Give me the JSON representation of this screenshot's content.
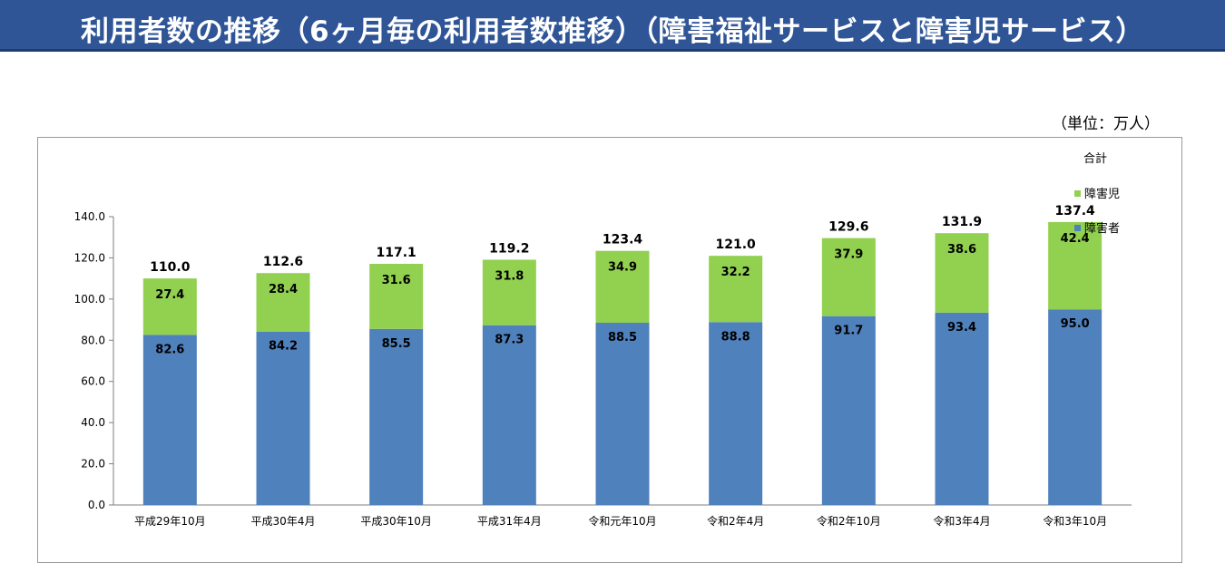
{
  "title": "利用者数の推移（6ヶ月毎の利用者数推移）（障害福祉サービスと障害児サービス）",
  "unit": "（単位：万人）",
  "colors": {
    "header": "#2f5597",
    "adult": "#4f81bd",
    "child": "#92d050"
  },
  "chart_data": {
    "type": "bar",
    "stacked": true,
    "categories": [
      "平成29年10月",
      "平成30年4月",
      "平成30年10月",
      "平成31年4月",
      "令和元年10月",
      "令和2年4月",
      "令和2年10月",
      "令和3年4月",
      "令和3年10月"
    ],
    "series": [
      {
        "name": "障害者",
        "color": "#4f81bd",
        "values": [
          82.6,
          84.2,
          85.5,
          87.3,
          88.5,
          88.8,
          91.7,
          93.4,
          95.0
        ]
      },
      {
        "name": "障害児",
        "color": "#92d050",
        "values": [
          27.4,
          28.4,
          31.6,
          31.8,
          34.9,
          32.2,
          37.9,
          38.6,
          42.4
        ]
      }
    ],
    "totals": [
      110.0,
      112.6,
      117.1,
      119.2,
      123.4,
      121.0,
      129.6,
      131.9,
      137.4
    ],
    "ylim": [
      0,
      140
    ],
    "yticks": [
      0,
      20,
      40,
      60,
      80,
      100,
      120,
      140
    ],
    "legend": {
      "placement": "right",
      "entries": [
        {
          "label": "合計",
          "marker": false
        },
        {
          "label": "障害児",
          "marker": true,
          "color": "#92d050"
        },
        {
          "label": "障害者",
          "marker": true,
          "color": "#4f81bd"
        }
      ]
    },
    "xlabel": "",
    "ylabel": ""
  }
}
